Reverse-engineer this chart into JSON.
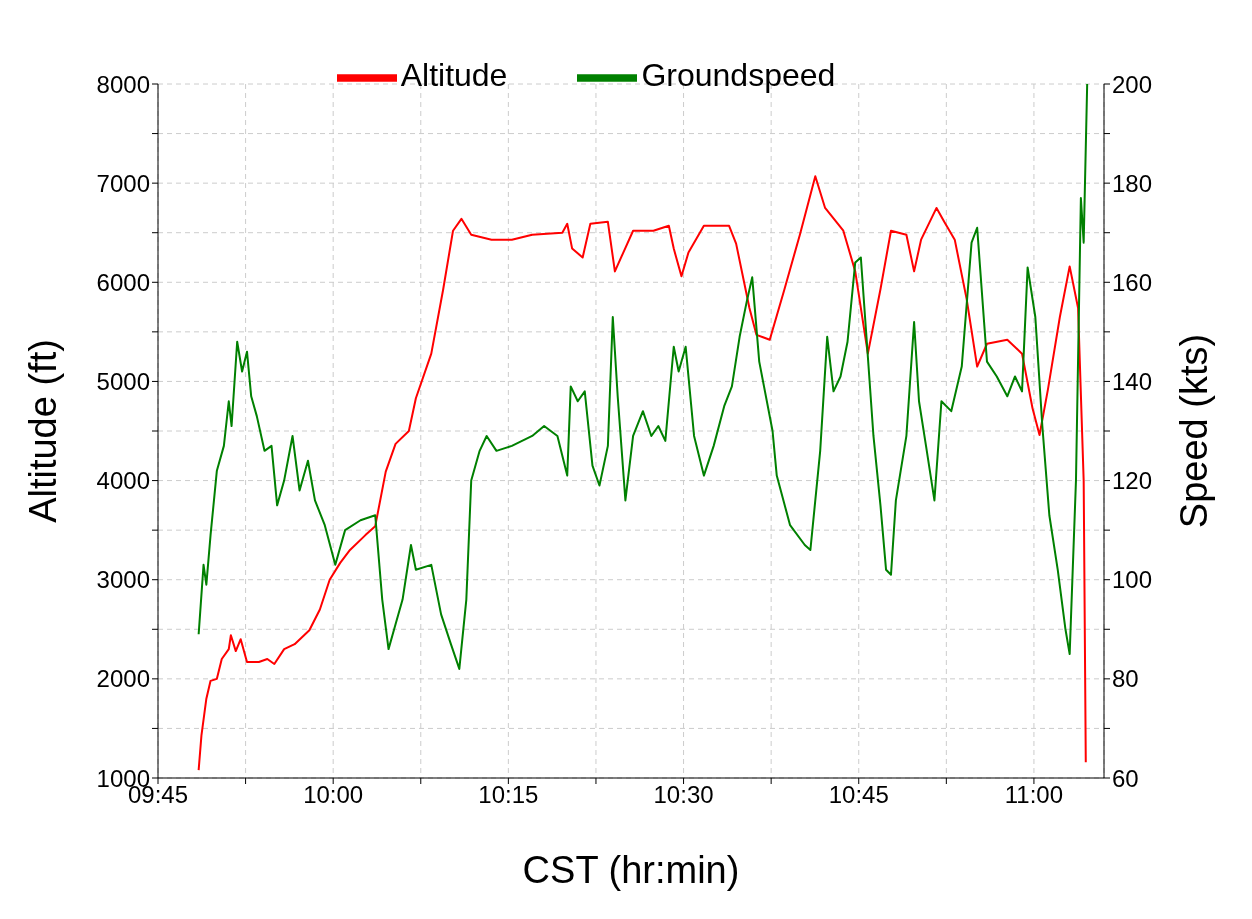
{
  "chart_data": {
    "type": "line",
    "xlabel": "CST (hr:min)",
    "ylabel": "Altitude (ft)",
    "y2label": "Speed (kts)",
    "xlim": [
      9.75,
      11.1
    ],
    "xticks": [
      {
        "value": 9.75,
        "label": "09:45"
      },
      {
        "value": 9.875,
        "label": null
      },
      {
        "value": 10,
        "label": "10:00"
      },
      {
        "value": 10.125,
        "label": null
      },
      {
        "value": 10.25,
        "label": "10:15"
      },
      {
        "value": 10.375,
        "label": null
      },
      {
        "value": 10.5,
        "label": "10:30"
      },
      {
        "value": 10.625,
        "label": null
      },
      {
        "value": 10.75,
        "label": "10:45"
      },
      {
        "value": 10.875,
        "label": null
      },
      {
        "value": 11,
        "label": "11:00"
      }
    ],
    "ylim": [
      1000,
      8000
    ],
    "yticks": [
      1000,
      {
        "value": 1500,
        "label": null
      },
      2000,
      {
        "value": 2500,
        "label": null
      },
      3000,
      {
        "value": 3500,
        "label": null
      },
      4000,
      {
        "value": 4500,
        "label": null
      },
      5000,
      {
        "value": 5500,
        "label": null
      },
      6000,
      {
        "value": 6500,
        "label": null
      },
      7000,
      {
        "value": 7500,
        "label": null
      },
      8000
    ],
    "y2lim": [
      60,
      200
    ],
    "y2ticks": [
      60,
      {
        "value": 70,
        "label": null
      },
      80,
      {
        "value": 90,
        "label": null
      },
      100,
      {
        "value": 110,
        "label": null
      },
      120,
      {
        "value": 130,
        "label": null
      },
      140,
      {
        "value": 150,
        "label": null
      },
      160,
      {
        "value": 170,
        "label": null
      },
      180,
      {
        "value": 190,
        "label": null
      },
      200
    ],
    "grid": true,
    "legend": "top",
    "line_style": "solid",
    "marker": "none",
    "series": [
      {
        "name": "Altitude",
        "color": "#ff0000",
        "x": [
          9.808,
          9.812,
          9.819,
          9.825,
          9.834,
          9.841,
          9.851,
          9.854,
          9.861,
          9.868,
          9.877,
          9.894,
          9.906,
          9.916,
          9.93,
          9.945,
          9.966,
          9.981,
          9.995,
          10.01,
          10.024,
          10.046,
          10.06,
          10.075,
          10.089,
          10.108,
          10.118,
          10.14,
          10.157,
          10.171,
          10.183,
          10.197,
          10.226,
          10.255,
          10.284,
          10.327,
          10.334,
          10.341,
          10.356,
          10.367,
          10.392,
          10.402,
          10.414,
          10.428,
          10.457,
          10.479,
          10.486,
          10.497,
          10.507,
          10.529,
          10.565,
          10.575,
          10.594,
          10.604,
          10.623,
          10.644,
          10.666,
          10.688,
          10.702,
          10.728,
          10.745,
          10.763,
          10.781,
          10.796,
          10.818,
          10.829,
          10.839,
          10.861,
          10.872,
          10.887,
          10.904,
          10.919,
          10.933,
          10.962,
          10.983,
          10.998,
          11.008,
          11.02,
          11.037,
          11.051,
          11.063,
          11.071,
          11.074
        ],
        "values": [
          1080,
          1430,
          1800,
          1980,
          2000,
          2200,
          2300,
          2440,
          2280,
          2400,
          2170,
          2170,
          2200,
          2150,
          2300,
          2350,
          2490,
          2700,
          3000,
          3170,
          3300,
          3450,
          3540,
          4090,
          4370,
          4500,
          4830,
          5280,
          5930,
          6520,
          6640,
          6480,
          6430,
          6430,
          6480,
          6500,
          6590,
          6340,
          6250,
          6590,
          6610,
          6110,
          6300,
          6520,
          6520,
          6570,
          6340,
          6060,
          6300,
          6570,
          6570,
          6390,
          5740,
          5470,
          5420,
          5930,
          6480,
          7070,
          6750,
          6520,
          6110,
          5280,
          5930,
          6520,
          6480,
          6110,
          6430,
          6750,
          6610,
          6430,
          5830,
          5150,
          5380,
          5420,
          5280,
          4730,
          4460,
          4920,
          5650,
          6160,
          5740,
          4000,
          1160
        ]
      },
      {
        "name": "Groundspeed",
        "color": "#008000",
        "axis": "y2",
        "x": [
          9.808,
          9.815,
          9.819,
          9.825,
          9.834,
          9.844,
          9.851,
          9.855,
          9.863,
          9.87,
          9.877,
          9.883,
          9.891,
          9.902,
          9.912,
          9.92,
          9.93,
          9.942,
          9.952,
          9.964,
          9.974,
          9.988,
          10.003,
          10.017,
          10.039,
          10.06,
          10.07,
          10.079,
          10.089,
          10.099,
          10.111,
          10.118,
          10.14,
          10.154,
          10.168,
          10.18,
          10.19,
          10.197,
          10.209,
          10.219,
          10.233,
          10.255,
          10.284,
          10.301,
          10.32,
          10.334,
          10.339,
          10.349,
          10.359,
          10.37,
          10.38,
          10.392,
          10.399,
          10.406,
          10.417,
          10.428,
          10.442,
          10.454,
          10.464,
          10.474,
          10.486,
          10.493,
          10.503,
          10.515,
          10.529,
          10.543,
          10.558,
          10.569,
          10.58,
          10.59,
          10.598,
          10.608,
          10.627,
          10.633,
          10.652,
          10.673,
          10.681,
          10.695,
          10.705,
          10.714,
          10.724,
          10.734,
          10.745,
          10.753,
          10.76,
          10.771,
          10.781,
          10.789,
          10.796,
          10.803,
          10.818,
          10.829,
          10.836,
          10.846,
          10.858,
          10.868,
          10.882,
          10.897,
          10.911,
          10.919,
          10.933,
          10.947,
          10.962,
          10.973,
          10.983,
          10.991,
          11.002,
          11.012,
          11.022,
          11.034,
          11.045,
          11.051,
          11.06,
          11.067,
          11.071,
          11.076
        ],
        "values": [
          89,
          103,
          99,
          109,
          122,
          127,
          136,
          131,
          148,
          142,
          146,
          137,
          133,
          126,
          127,
          115,
          120,
          129,
          118,
          124,
          116,
          111,
          103,
          110,
          112,
          113,
          96,
          86,
          91,
          96,
          107,
          102,
          103,
          93,
          87,
          82,
          96,
          120,
          126,
          129,
          126,
          127,
          129,
          131,
          129,
          121,
          139,
          136,
          138,
          123,
          119,
          127,
          153,
          137,
          116,
          129,
          134,
          129,
          131,
          128,
          147,
          142,
          147,
          129,
          121,
          127,
          135,
          139,
          149,
          156,
          161,
          144,
          130,
          121,
          111,
          107,
          106,
          126,
          149,
          138,
          141,
          148,
          164,
          165,
          151,
          129,
          115,
          102,
          101,
          116,
          129,
          152,
          136,
          127,
          116,
          136,
          134,
          143,
          168,
          171,
          144,
          141,
          137,
          141,
          138,
          163,
          153,
          131,
          113,
          102,
          90,
          85,
          120,
          177,
          168,
          200
        ]
      }
    ]
  }
}
